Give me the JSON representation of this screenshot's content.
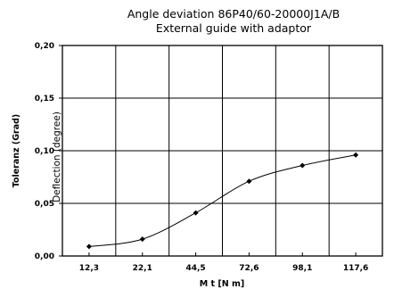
{
  "chart_data": {
    "type": "line",
    "title": "Angle deviation 86P40/60-20000J1A/B",
    "subtitle": "External guide with adaptor",
    "xlabel": "M t  [N m]",
    "ylabel": "Toleranz (Grad)",
    "ylabel_secondary": "Deflection (degree)",
    "x_scale": "categorical",
    "categories": [
      "12,3",
      "22,1",
      "44,5",
      "72,6",
      "98,1",
      "117,6"
    ],
    "ylim": [
      0,
      0.2
    ],
    "y_ticks": [
      0,
      0.05,
      0.1,
      0.15,
      0.2
    ],
    "y_tick_labels": [
      "0,00",
      "0,05",
      "0,10",
      "0,15",
      "0,20"
    ],
    "grid": true,
    "legend": "none",
    "series": [
      {
        "values": [
          0.009,
          0.016,
          0.041,
          0.071,
          0.086,
          0.096
        ],
        "color": "#000000",
        "marker": "diamond",
        "smooth": true
      }
    ]
  }
}
